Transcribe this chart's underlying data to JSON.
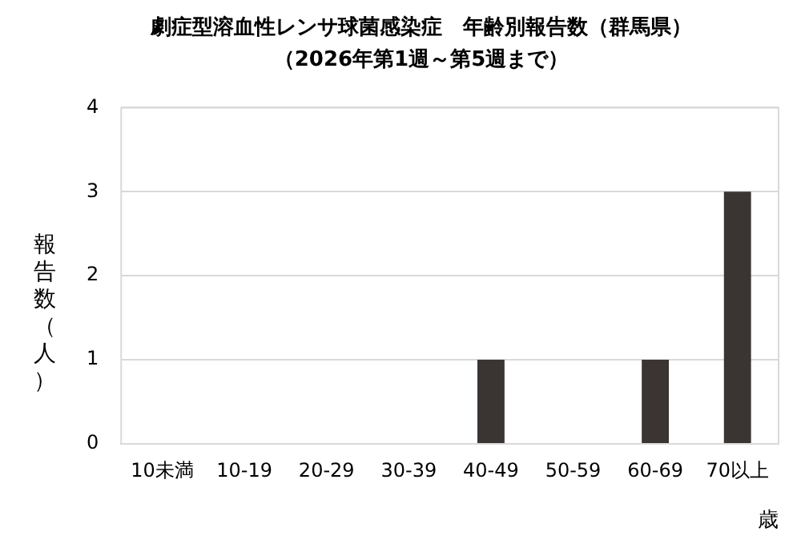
{
  "chart_data": {
    "type": "bar",
    "title": "劇症型溶血性レンサ球菌感染症　年齢別報告数（群馬県）",
    "subtitle": "（2026年第1週～第5週まで）",
    "xlabel": "歳",
    "ylabel": "報告数（人）",
    "categories": [
      "10未満",
      "10-19",
      "20-29",
      "30-39",
      "40-49",
      "50-59",
      "60-69",
      "70以上"
    ],
    "values": [
      0,
      0,
      0,
      0,
      1,
      0,
      1,
      3
    ],
    "color": "#3a3533",
    "ylim": [
      0,
      4
    ],
    "yticks": [
      0,
      1,
      2,
      3,
      4
    ],
    "grid": "y"
  }
}
